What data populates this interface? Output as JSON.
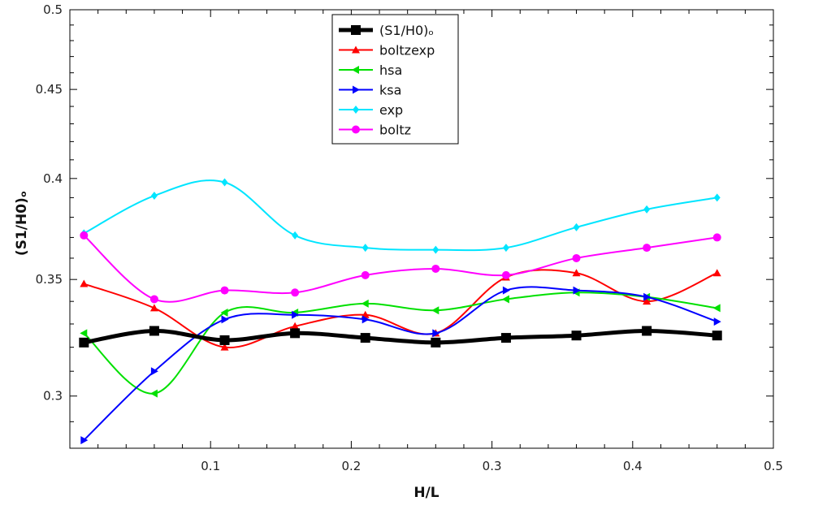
{
  "chart_data": {
    "type": "line",
    "xlabel": "H/L",
    "ylabel": "(S1/H0)ₒ",
    "xlim": [
      0.0,
      0.5
    ],
    "ylim": [
      0.28,
      0.5
    ],
    "x_ticks": [
      0.1,
      0.2,
      0.3,
      0.4,
      0.5
    ],
    "x_tick_labels": [
      "0.1",
      "0.2",
      "0.3",
      "0.4",
      "0.5"
    ],
    "y_ticks": [
      0.3,
      0.35,
      0.4,
      0.45,
      0.5
    ],
    "y_tick_labels": [
      "0.3",
      "0.35",
      "0.4",
      "0.45",
      "0.5"
    ],
    "y_scale": "log",
    "grid": false,
    "legend_position": "top-center",
    "x": [
      0.01,
      0.06,
      0.11,
      0.16,
      0.21,
      0.26,
      0.31,
      0.36,
      0.41,
      0.46
    ],
    "series": [
      {
        "name": "(S1/H0)ₒ",
        "color": "#000000",
        "marker": "square",
        "width": 5,
        "values": [
          0.322,
          0.327,
          0.323,
          0.326,
          0.324,
          0.322,
          0.324,
          0.325,
          0.327,
          0.325
        ]
      },
      {
        "name": "boltzexp",
        "color": "#ff0000",
        "marker": "triangle-up",
        "width": 2,
        "values": [
          0.348,
          0.337,
          0.32,
          0.329,
          0.334,
          0.326,
          0.351,
          0.353,
          0.34,
          0.353
        ]
      },
      {
        "name": "hsa",
        "color": "#00e000",
        "marker": "triangle-left",
        "width": 2,
        "values": [
          0.326,
          0.301,
          0.335,
          0.335,
          0.339,
          0.336,
          0.341,
          0.344,
          0.342,
          0.337
        ]
      },
      {
        "name": "ksa",
        "color": "#0000ff",
        "marker": "triangle-right",
        "width": 2,
        "values": [
          0.283,
          0.31,
          0.332,
          0.334,
          0.332,
          0.326,
          0.345,
          0.345,
          0.342,
          0.331
        ]
      },
      {
        "name": "exp",
        "color": "#00e5ff",
        "marker": "diamond",
        "width": 2,
        "values": [
          0.372,
          0.391,
          0.398,
          0.371,
          0.365,
          0.364,
          0.365,
          0.375,
          0.384,
          0.39
        ]
      },
      {
        "name": "boltz",
        "color": "#ff00ff",
        "marker": "circle",
        "width": 2,
        "values": [
          0.371,
          0.341,
          0.345,
          0.344,
          0.352,
          0.355,
          0.352,
          0.36,
          0.365,
          0.37
        ]
      }
    ]
  }
}
